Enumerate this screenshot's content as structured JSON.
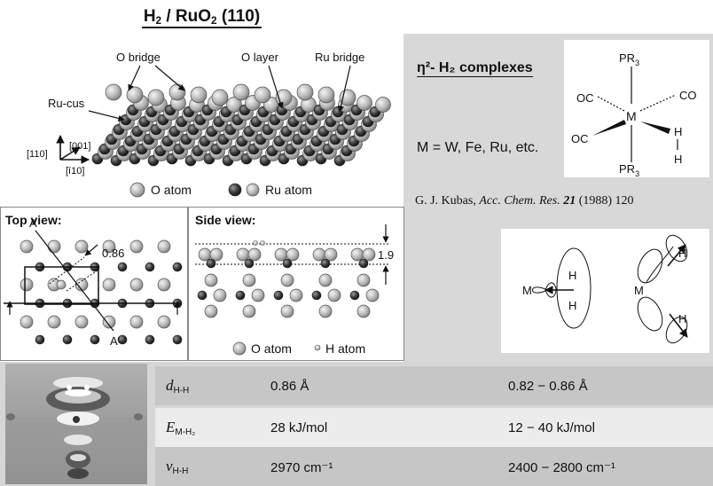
{
  "title": {
    "main": "H",
    "sub1": "2",
    "mid": " / RuO",
    "sub2": "2",
    "tail": " (110)"
  },
  "surface": {
    "labels": {
      "o_bridge": "O bridge",
      "o_layer": "O layer",
      "ru_bridge": "Ru bridge",
      "ru_cus": "Ru-cus"
    },
    "axes": {
      "a110": "[110]",
      "a001": "[001]",
      "a_110": "[ī10]"
    },
    "legend": {
      "o_atom": "O atom",
      "ru_atom": "Ru atom"
    }
  },
  "complexes": {
    "heading": "η²- H₂ complexes",
    "metals": "M = W, Fe, Ru, etc.",
    "formula": {
      "pr3": "PR",
      "pr3_sub": "3",
      "oc": "OC",
      "co": "CO",
      "m": "M",
      "h": "H"
    },
    "reference": {
      "authors": "G. J. Kubas, ",
      "journal": "Acc. Chem. Res.",
      "volume": "21",
      "rest": " (1988) 120"
    }
  },
  "top_view": {
    "title": "Top view:",
    "value": "0.86",
    "a": "A",
    "a_prime": "A′"
  },
  "side_view": {
    "title": "Side view:",
    "value": "1.9",
    "legend_o": "O atom",
    "legend_h": "H atom"
  },
  "bonding": {
    "m": "M",
    "h": "H"
  },
  "table": {
    "rows": [
      {
        "sym": "d",
        "sub": "H-H",
        "v1": "0.86 Å",
        "v2": "0.82 − 0.86 Å"
      },
      {
        "sym": "E",
        "sub": "M-H₂",
        "v1": "28 kJ/mol",
        "v2": "12 − 40 kJ/mol"
      },
      {
        "sym": "ν",
        "sub": "H-H",
        "v1": "2970 cm⁻¹",
        "v2": "2400 − 2800 cm⁻¹"
      }
    ]
  }
}
